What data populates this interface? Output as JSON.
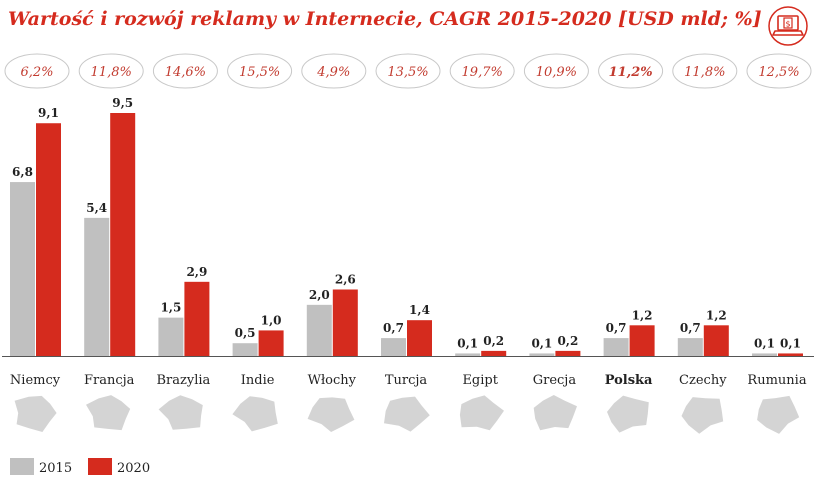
{
  "title": "Wartość i rozwój  reklamy w Internecie, CAGR 2015-2020 [USD mld; %]",
  "icon": "laptop-dollar-icon",
  "colors": {
    "series_2015": "#c0c0c0",
    "series_2020": "#d52b1e",
    "accent": "#d52b1e",
    "map": "#d4d4d4"
  },
  "chart_data": {
    "type": "bar",
    "title": "Wartość i rozwój  reklamy w Internecie, CAGR 2015-2020 [USD mld; %]",
    "categories": [
      "Niemcy",
      "Francja",
      "Brazylia",
      "Indie",
      "Włochy",
      "Turcja",
      "Egipt",
      "Grecja",
      "Polska",
      "Czechy",
      "Rumunia"
    ],
    "highlight_category": "Polska",
    "series": [
      {
        "name": "2015",
        "values": [
          6.8,
          5.4,
          1.5,
          0.5,
          2.0,
          0.7,
          0.1,
          0.1,
          0.7,
          0.7,
          0.1
        ],
        "labels": [
          "6,8",
          "5,4",
          "1,5",
          "0,5",
          "2,0",
          "0,7",
          "0,1",
          "0,1",
          "0,7",
          "0,7",
          "0,1"
        ]
      },
      {
        "name": "2020",
        "values": [
          9.1,
          9.5,
          2.9,
          1.0,
          2.6,
          1.4,
          0.2,
          0.2,
          1.2,
          1.2,
          0.1
        ],
        "labels": [
          "9,1",
          "9,5",
          "2,9",
          "1,0",
          "2,6",
          "1,4",
          "0,2",
          "0,2",
          "1,2",
          "1,2",
          "0,1"
        ]
      }
    ],
    "cagr": [
      "6,2%",
      "11,8%",
      "14,6%",
      "15,5%",
      "4,9%",
      "13,5%",
      "19,7%",
      "10,9%",
      "11,2%",
      "11,8%",
      "12,5%"
    ],
    "ylim": [
      0,
      9.5
    ],
    "xlabel": "",
    "ylabel": "",
    "legend": {
      "position": "bottom-left",
      "entries": [
        "2015",
        "2020"
      ]
    },
    "grid": false
  }
}
